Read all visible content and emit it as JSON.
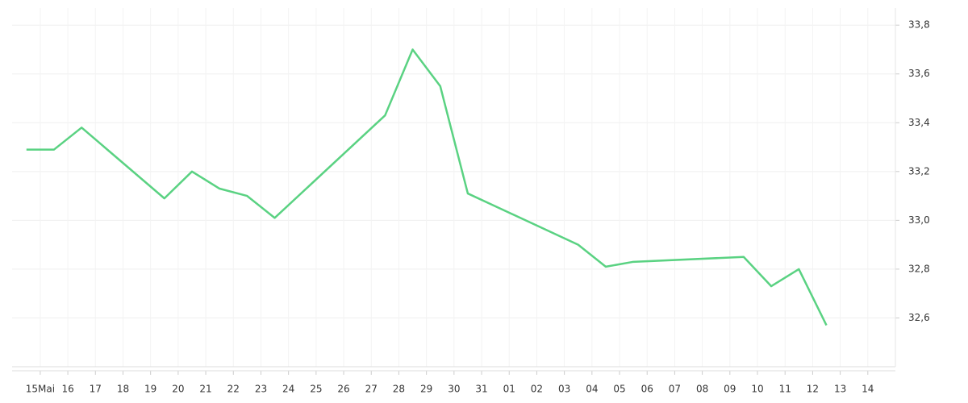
{
  "chart_data": {
    "type": "line",
    "x": [
      -0.5,
      0.5,
      1.5,
      4.5,
      5.5,
      6.5,
      7.5,
      8.5,
      12.5,
      13.5,
      14.5,
      15.5,
      19.5,
      20.5,
      21.5,
      25.5,
      26.5,
      27.5,
      28.5
    ],
    "series": [
      {
        "color": "#5ad282",
        "values": [
          33.29,
          33.29,
          33.38,
          33.09,
          33.2,
          33.13,
          33.1,
          33.01,
          33.43,
          33.7,
          33.55,
          33.11,
          32.9,
          32.81,
          32.83,
          32.85,
          32.73,
          32.8,
          32.57
        ]
      }
    ],
    "xlim": [
      -1.02,
      31
    ],
    "xticks": [
      {
        "value": 0,
        "label": "15Mai"
      },
      {
        "value": 1,
        "label": "16"
      },
      {
        "value": 2,
        "label": "17"
      },
      {
        "value": 3,
        "label": "18"
      },
      {
        "value": 4,
        "label": "19"
      },
      {
        "value": 5,
        "label": "20"
      },
      {
        "value": 6,
        "label": "21"
      },
      {
        "value": 7,
        "label": "22"
      },
      {
        "value": 8,
        "label": "23"
      },
      {
        "value": 9,
        "label": "24"
      },
      {
        "value": 10,
        "label": "25"
      },
      {
        "value": 11,
        "label": "26"
      },
      {
        "value": 12,
        "label": "27"
      },
      {
        "value": 13,
        "label": "28"
      },
      {
        "value": 14,
        "label": "29"
      },
      {
        "value": 15,
        "label": "30"
      },
      {
        "value": 16,
        "label": "31"
      },
      {
        "value": 17,
        "label": "01"
      },
      {
        "value": 18,
        "label": "02"
      },
      {
        "value": 19,
        "label": "03"
      },
      {
        "value": 20,
        "label": "04"
      },
      {
        "value": 21,
        "label": "05"
      },
      {
        "value": 22,
        "label": "06"
      },
      {
        "value": 23,
        "label": "07"
      },
      {
        "value": 24,
        "label": "08"
      },
      {
        "value": 25,
        "label": "09"
      },
      {
        "value": 26,
        "label": "10"
      },
      {
        "value": 27,
        "label": "11"
      },
      {
        "value": 28,
        "label": "12"
      },
      {
        "value": 29,
        "label": "13"
      },
      {
        "value": 30,
        "label": "14"
      }
    ],
    "ylim": [
      32.4,
      33.87
    ],
    "yticks": [
      {
        "value": 32.6,
        "label": "32,6"
      },
      {
        "value": 32.8,
        "label": "32,8"
      },
      {
        "value": 33.0,
        "label": "33,0"
      },
      {
        "value": 33.2,
        "label": "33,2"
      },
      {
        "value": 33.4,
        "label": "33,4"
      },
      {
        "value": 33.6,
        "label": "33,6"
      },
      {
        "value": 33.8,
        "label": "33,8"
      }
    ],
    "grid": true
  }
}
